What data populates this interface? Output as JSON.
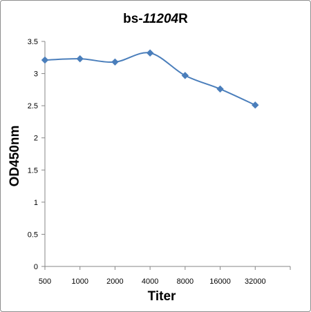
{
  "chart_data": {
    "type": "line",
    "title_parts": [
      {
        "text": "bs-",
        "italic": false
      },
      {
        "text": "11204",
        "italic": true
      },
      {
        "text": "R",
        "italic": false
      }
    ],
    "xlabel": "Titer",
    "ylabel": "OD450nm",
    "categories": [
      "500",
      "1000",
      "2000",
      "4000",
      "8000",
      "16000",
      "32000"
    ],
    "series": [
      {
        "values": [
          3.21,
          3.23,
          3.18,
          3.32,
          2.97,
          2.76,
          2.51
        ],
        "color": "#4a7ebb"
      }
    ],
    "yticks": [
      "0",
      "0.5",
      "1",
      "1.5",
      "2",
      "2.5",
      "3",
      "3.5"
    ],
    "ylim": [
      0,
      3.5
    ],
    "grid": false,
    "legend": "none"
  }
}
